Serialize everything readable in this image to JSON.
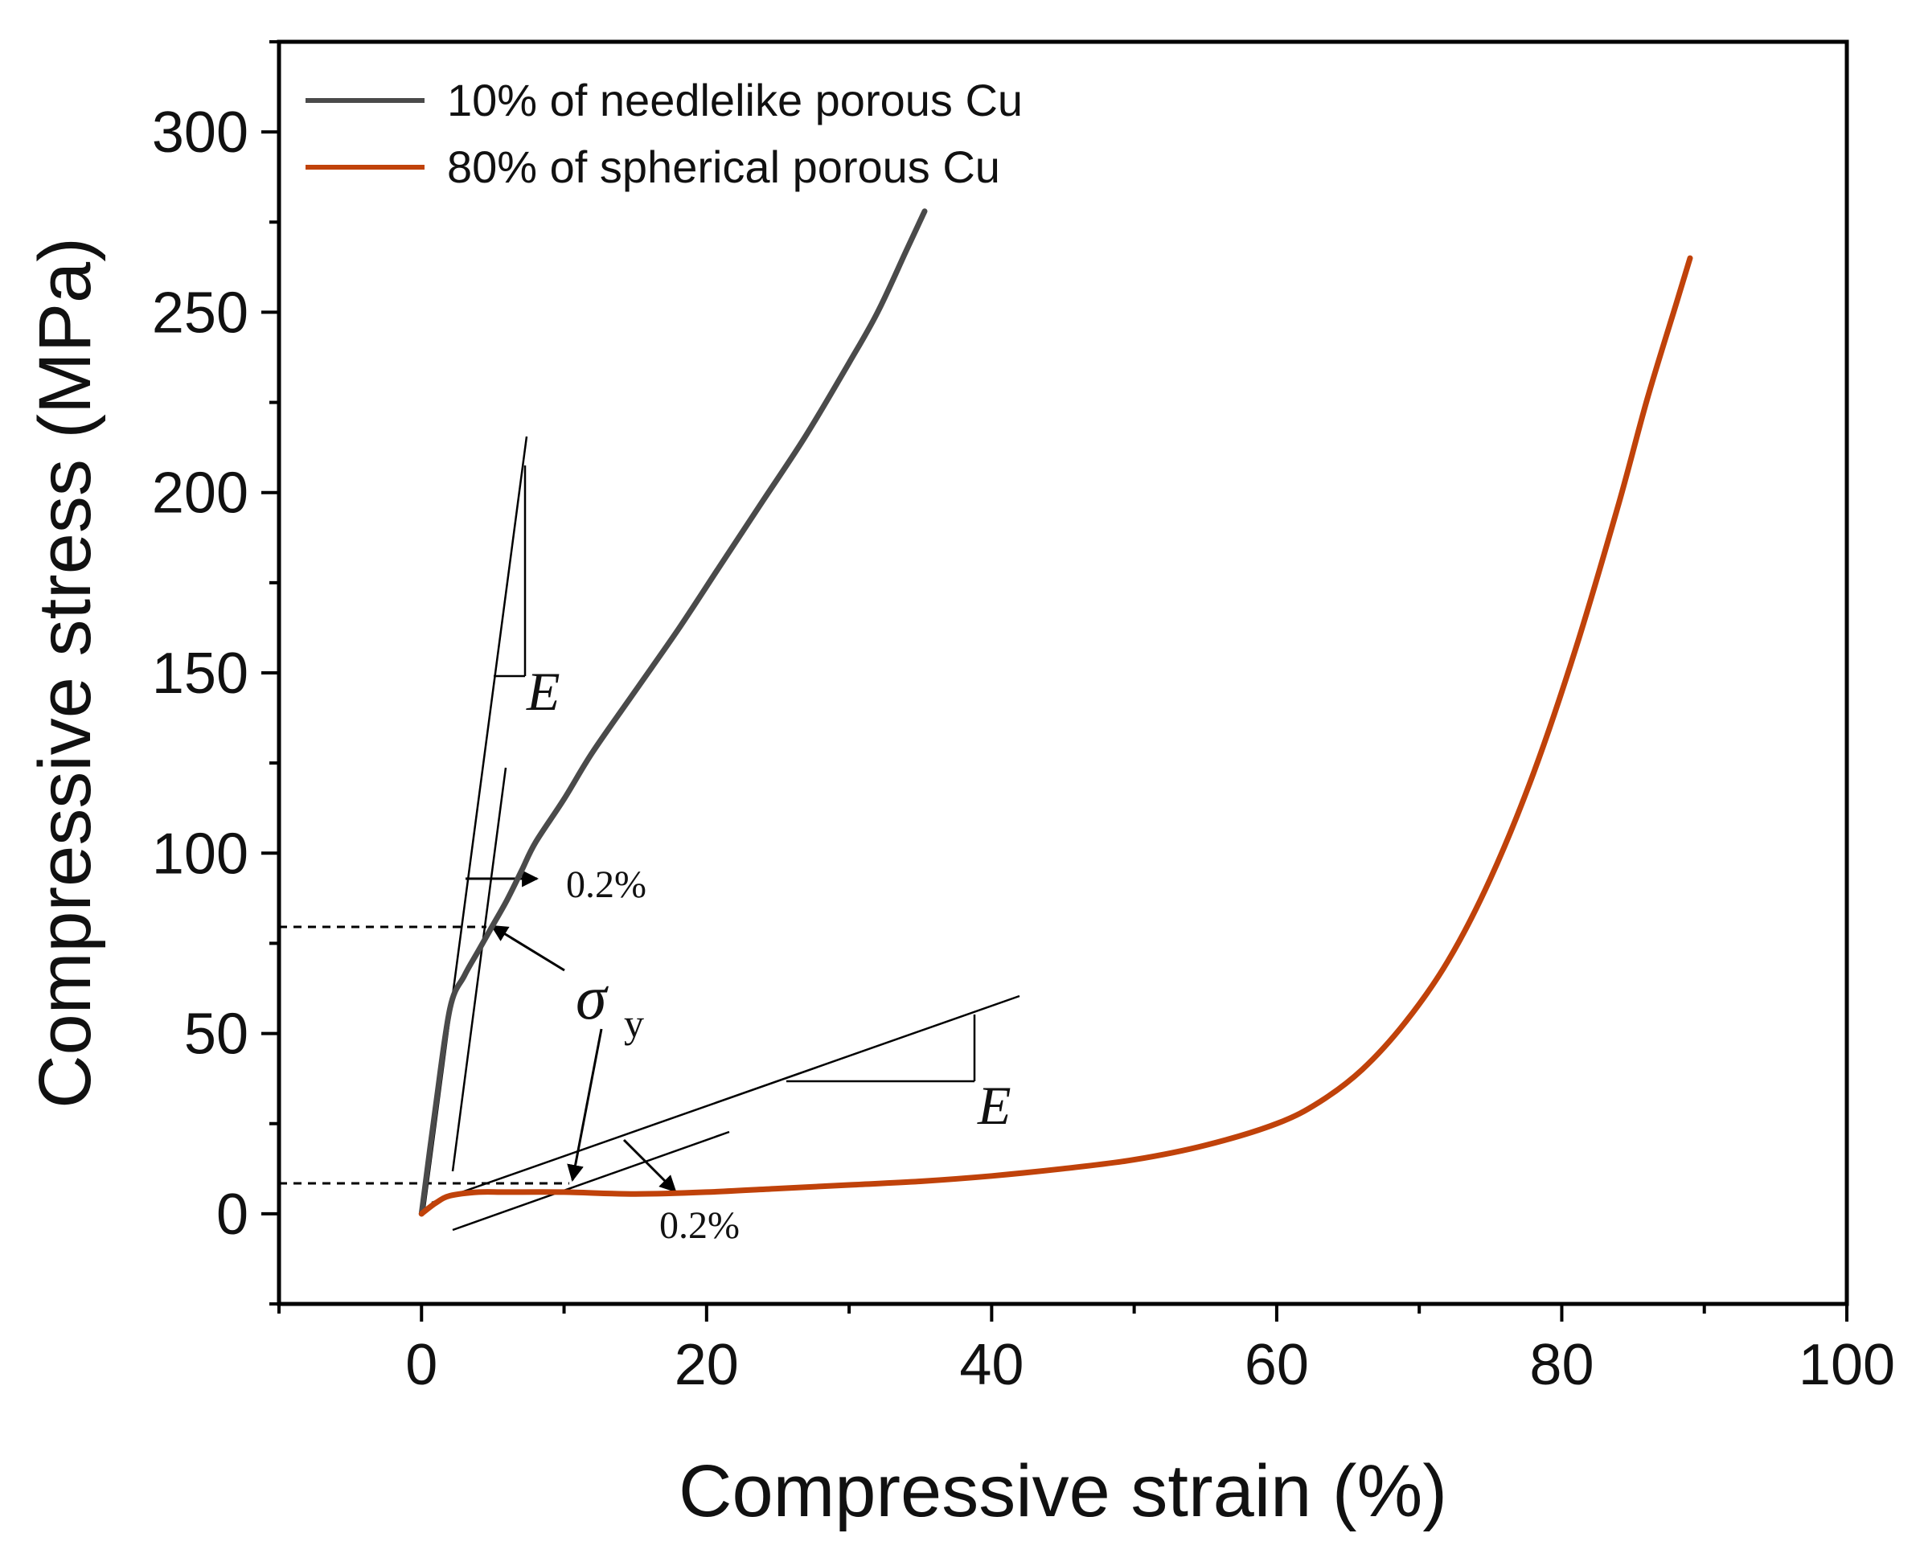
{
  "chart_data": {
    "type": "line",
    "title": "",
    "xlabel": "Compressive strain (%)",
    "ylabel": "Compressive stress (MPa)",
    "xlim": [
      -10,
      100
    ],
    "ylim": [
      -25,
      325
    ],
    "xticks": [
      0,
      20,
      40,
      60,
      80,
      100
    ],
    "yticks": [
      0,
      50,
      100,
      150,
      200,
      250,
      300
    ],
    "grid": false,
    "legend_position": "top-left",
    "series": [
      {
        "name": "10% of needlelike porous Cu",
        "color": "#4a4a4a",
        "x": [
          0,
          1,
          2,
          3,
          4,
          5,
          6,
          7,
          8,
          10,
          12,
          15,
          18,
          21,
          24,
          27,
          30,
          32,
          34,
          35.3
        ],
        "y": [
          0,
          30,
          57,
          66,
          73,
          80,
          87,
          95,
          103,
          115,
          128,
          145,
          162,
          180,
          198,
          216,
          236,
          250,
          267,
          278
        ]
      },
      {
        "name": "80% of spherical porous Cu",
        "color": "#c0420a",
        "x": [
          0,
          1,
          2,
          4,
          6,
          10,
          15,
          20,
          25,
          30,
          35,
          40,
          45,
          50,
          55,
          60,
          63,
          66,
          69,
          72,
          75,
          78,
          81,
          84,
          86,
          88,
          89
        ],
        "y": [
          0,
          3,
          5,
          6,
          6,
          6,
          5.5,
          6,
          7,
          8,
          9,
          10.5,
          12.5,
          15,
          19,
          25,
          31,
          40,
          53,
          70,
          93,
          122,
          157,
          197,
          226,
          252,
          265
        ]
      }
    ],
    "annotations": {
      "modulus_label": "E",
      "offset_label_upper": "0.2%",
      "offset_label_lower": "0.2%",
      "yield_symbol": "σ",
      "yield_subscript": "y",
      "yield_values": [
        79,
        9
      ]
    }
  }
}
